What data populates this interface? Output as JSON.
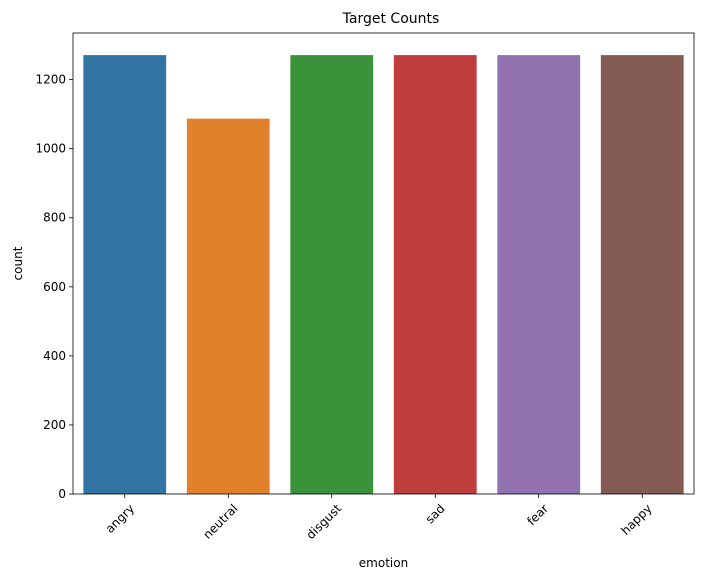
{
  "chart_data": {
    "type": "bar",
    "title": "Target Counts",
    "xlabel": "emotion",
    "ylabel": "count",
    "categories": [
      "angry",
      "neutral",
      "disgust",
      "sad",
      "fear",
      "happy"
    ],
    "values": [
      1271,
      1087,
      1271,
      1271,
      1271,
      1271
    ],
    "colors": [
      "#3274a1",
      "#e1812c",
      "#3a923a",
      "#c03d3e",
      "#9372b2",
      "#845b53"
    ],
    "ylim": [
      0,
      1335
    ],
    "yticks": [
      0,
      200,
      400,
      600,
      800,
      1000,
      1200
    ],
    "ytick_labels": [
      "0",
      "200",
      "400",
      "600",
      "800",
      "1000",
      "1200"
    ],
    "xtick_rotation": 45,
    "grid": false,
    "legend": "none"
  }
}
